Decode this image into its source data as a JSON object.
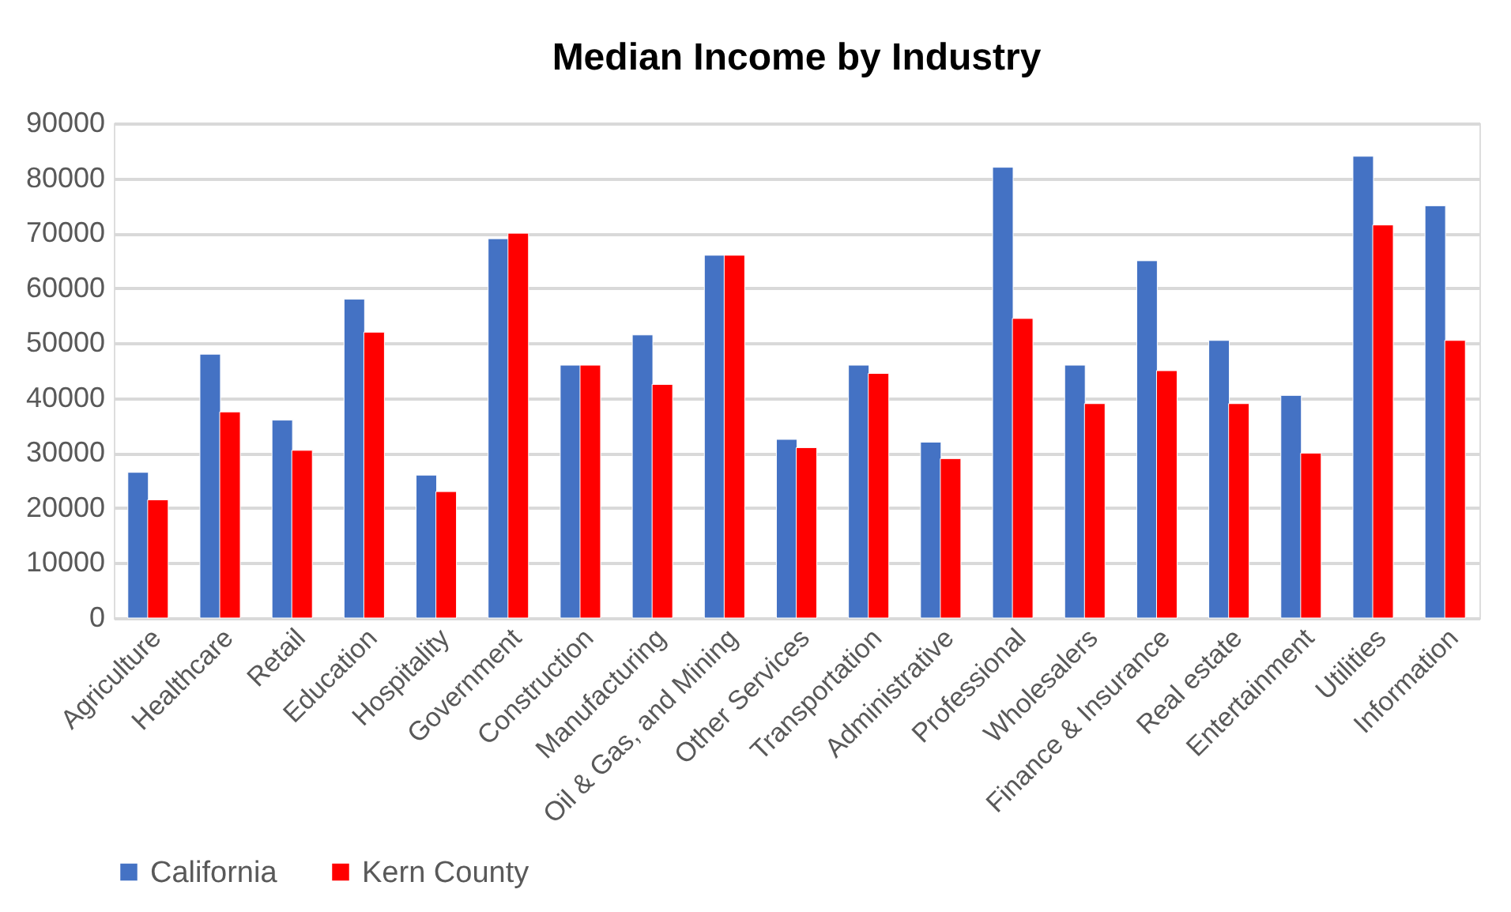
{
  "chart_data": {
    "type": "bar",
    "title": "Median Income by Industry",
    "categories": [
      "Agriculture",
      "Healthcare",
      "Retail",
      "Education",
      "Hospitality",
      "Government",
      "Construction",
      "Manufacturing",
      "Oil & Gas, and Mining",
      "Other Services",
      "Transportation",
      "Administrative",
      "Professional",
      "Wholesalers",
      "Finance & Insurance",
      "Real estate",
      "Entertainment",
      "Utilities",
      "Information"
    ],
    "series": [
      {
        "name": "California",
        "color": "#4472c4",
        "values": [
          26500,
          48000,
          36000,
          58000,
          26000,
          69000,
          46000,
          51500,
          66000,
          32500,
          46000,
          32000,
          82000,
          46000,
          65000,
          50500,
          40500,
          84000,
          75000
        ]
      },
      {
        "name": "Kern County",
        "color": "#ff0000",
        "values": [
          21500,
          37500,
          30500,
          52000,
          23000,
          70000,
          46000,
          42500,
          66000,
          31000,
          44500,
          29000,
          54500,
          39000,
          45000,
          39000,
          30000,
          71500,
          50500
        ]
      }
    ],
    "ylim": [
      0,
      90000
    ],
    "yticks": [
      0,
      10000,
      20000,
      30000,
      40000,
      50000,
      60000,
      70000,
      80000,
      90000
    ],
    "grid": "y",
    "legend": "bottom"
  }
}
